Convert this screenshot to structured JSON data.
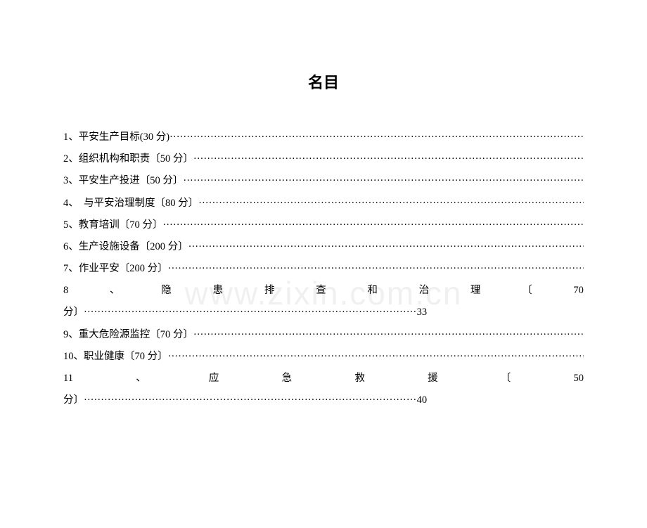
{
  "title": "名目",
  "watermark": "www.zixin.com.cn",
  "toc": [
    {
      "type": "simple",
      "label": "1、平安生产目标(30 分) "
    },
    {
      "type": "simple",
      "label": "2、组织机构和职责〔50 分〕"
    },
    {
      "type": "simple",
      "label": "3、平安生产投进〔50 分〕"
    },
    {
      "type": "simple",
      "label": "4、　与平安治理制度〔80 分〕"
    },
    {
      "type": "simple",
      "label": "5、教育培训〔70 分〕"
    },
    {
      "type": "simple",
      "label": "6、生产设施设备〔200 分〕"
    },
    {
      "type": "simple",
      "label": "7、作业平安〔200 分〕"
    },
    {
      "type": "justified",
      "chars": [
        "8",
        "、",
        "隐",
        "患",
        "排",
        "查",
        "和",
        "治",
        "理",
        "〔",
        "70"
      ]
    },
    {
      "type": "page",
      "label": "分〕",
      "page": "33"
    },
    {
      "type": "simple",
      "label": "9、重大危险源监控〔70 分〕"
    },
    {
      "type": "simple",
      "label": "10、职业健康〔70 分〕"
    },
    {
      "type": "justified",
      "chars": [
        "11",
        "、",
        "应",
        "急",
        "救",
        "援",
        "〔",
        "50"
      ]
    },
    {
      "type": "page",
      "label": "分〕",
      "page": "40"
    }
  ],
  "style": {
    "text_color": "#000000",
    "background_color": "#ffffff",
    "title_fontsize": 22,
    "body_fontsize": 14.5,
    "line_height": 2.15,
    "watermark_color": "rgba(0,0,0,0.06)",
    "watermark_fontsize": 46
  }
}
